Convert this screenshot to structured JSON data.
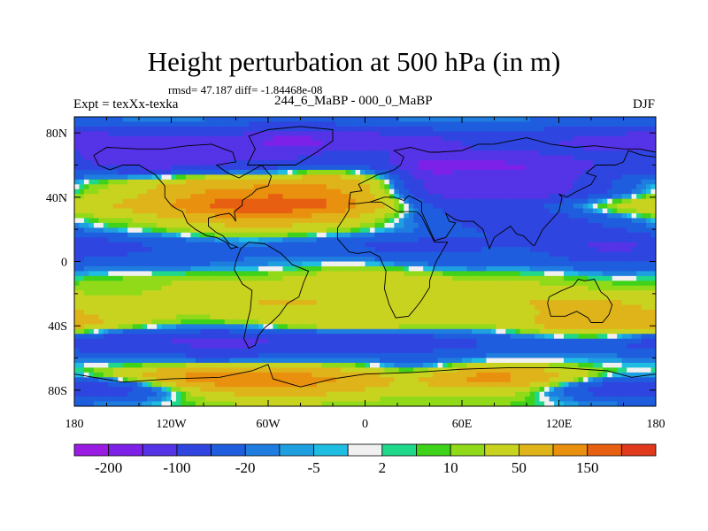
{
  "chart_data": {
    "type": "heatmap",
    "title": "Height perturbation at 500 hPa (in m)",
    "stats": "rmsd= 47.187 diff= -1.84468e-08",
    "left_label": "Expt = texXx-texka",
    "center_label": "244_6_MaBP - 000_0_MaBP",
    "right_label": "DJF",
    "x_ticks": [
      "180",
      "120W",
      "60W",
      "0",
      "60E",
      "120E",
      "180"
    ],
    "x_tick_values": [
      -180,
      -120,
      -60,
      0,
      60,
      120,
      180
    ],
    "y_ticks": [
      "80N",
      "40N",
      "0",
      "40S",
      "80S"
    ],
    "y_tick_values": [
      80,
      40,
      0,
      -40,
      -80
    ],
    "xlim": [
      -180,
      180
    ],
    "ylim": [
      -90,
      90
    ],
    "colorbar": {
      "levels": [
        -250,
        -200,
        -150,
        -100,
        -50,
        -20,
        -10,
        -5,
        -2,
        2,
        5,
        10,
        20,
        50,
        100,
        150,
        200
      ],
      "labels": [
        "-200",
        "-100",
        "-20",
        "-5",
        "2",
        "10",
        "50",
        "150"
      ],
      "colors": [
        "#9a1ce3",
        "#7d21e8",
        "#5533e6",
        "#2f45e0",
        "#1e5ede",
        "#1f7de0",
        "#1e9fe0",
        "#20bde3",
        "#f0f0f0",
        "#20d88a",
        "#3fd21a",
        "#90da19",
        "#c8d320",
        "#dfb41a",
        "#e9900e",
        "#e75f10",
        "#e0391c"
      ]
    },
    "bands": [
      {
        "lat": 85,
        "amp": -20
      },
      {
        "lat": 75,
        "amp": -90
      },
      {
        "lat": 62,
        "amp": -60
      },
      {
        "lat": 48,
        "amp": 40
      },
      {
        "lat": 35,
        "amp": 80
      },
      {
        "lat": 22,
        "amp": 10
      },
      {
        "lat": 10,
        "amp": -40
      },
      {
        "lat": 0,
        "amp": -20
      },
      {
        "lat": -12,
        "amp": 15
      },
      {
        "lat": -25,
        "amp": 35
      },
      {
        "lat": -38,
        "amp": 40
      },
      {
        "lat": -50,
        "amp": -60
      },
      {
        "lat": -62,
        "amp": -10
      },
      {
        "lat": -72,
        "amp": 90
      },
      {
        "lat": -84,
        "amp": 20
      }
    ],
    "anomalies": [
      {
        "lon": 95,
        "lat": 43,
        "amp": -200,
        "rlon": 45,
        "rlat": 15
      },
      {
        "lon": -75,
        "lat": 35,
        "amp": 70,
        "rlon": 35,
        "rlat": 12
      },
      {
        "lon": -120,
        "lat": 65,
        "amp": -60,
        "rlon": 30,
        "rlat": 10
      },
      {
        "lon": -55,
        "lat": 70,
        "amp": -80,
        "rlon": 25,
        "rlat": 10
      },
      {
        "lon": -20,
        "lat": 45,
        "amp": 60,
        "rlon": 25,
        "rlat": 12
      },
      {
        "lon": 40,
        "lat": 50,
        "amp": -70,
        "rlon": 15,
        "rlat": 10
      },
      {
        "lon": -80,
        "lat": -50,
        "amp": -70,
        "rlon": 40,
        "rlat": 8
      },
      {
        "lon": 150,
        "lat": -40,
        "amp": 50,
        "rlon": 30,
        "rlat": 8
      },
      {
        "lon": -150,
        "lat": -78,
        "amp": -80,
        "rlon": 30,
        "rlat": 6
      },
      {
        "lon": 150,
        "lat": -78,
        "amp": -100,
        "rlon": 35,
        "rlat": 7
      },
      {
        "lon": -40,
        "lat": -75,
        "amp": 50,
        "rlon": 40,
        "rlat": 6
      },
      {
        "lon": 30,
        "lat": -70,
        "amp": -50,
        "rlon": 20,
        "rlat": 6
      },
      {
        "lon": 150,
        "lat": 10,
        "amp": -60,
        "rlon": 25,
        "rlat": 10
      },
      {
        "lon": 0,
        "lat": -10,
        "amp": 30,
        "rlon": 30,
        "rlat": 10
      }
    ],
    "coastlines": [
      [
        [
          -168,
          66
        ],
        [
          -160,
          71
        ],
        [
          -140,
          70
        ],
        [
          -125,
          70
        ],
        [
          -110,
          72
        ],
        [
          -95,
          73
        ],
        [
          -82,
          68
        ],
        [
          -80,
          62
        ],
        [
          -92,
          60
        ],
        [
          -85,
          55
        ],
        [
          -78,
          52
        ],
        [
          -64,
          60
        ],
        [
          -58,
          53
        ],
        [
          -60,
          47
        ],
        [
          -67,
          45
        ],
        [
          -70,
          42
        ],
        [
          -76,
          38
        ],
        [
          -76,
          35
        ],
        [
          -81,
          31
        ],
        [
          -80,
          25
        ],
        [
          -82,
          28
        ],
        [
          -84,
          30
        ],
        [
          -90,
          29
        ],
        [
          -97,
          27
        ],
        [
          -97,
          22
        ],
        [
          -92,
          18
        ],
        [
          -88,
          16
        ],
        [
          -84,
          11
        ],
        [
          -79,
          9
        ],
        [
          -83,
          8
        ],
        [
          -86,
          12
        ],
        [
          -92,
          15
        ],
        [
          -98,
          16
        ],
        [
          -105,
          20
        ],
        [
          -110,
          24
        ],
        [
          -113,
          31
        ],
        [
          -117,
          33
        ],
        [
          -120,
          35
        ],
        [
          -124,
          40
        ],
        [
          -124,
          47
        ],
        [
          -130,
          54
        ],
        [
          -140,
          60
        ],
        [
          -150,
          60
        ],
        [
          -158,
          57
        ],
        [
          -165,
          60
        ],
        [
          -168,
          66
        ]
      ],
      [
        [
          -77,
          8
        ],
        [
          -72,
          12
        ],
        [
          -62,
          11
        ],
        [
          -52,
          5
        ],
        [
          -45,
          -2
        ],
        [
          -35,
          -6
        ],
        [
          -38,
          -13
        ],
        [
          -41,
          -22
        ],
        [
          -48,
          -26
        ],
        [
          -53,
          -33
        ],
        [
          -58,
          -38
        ],
        [
          -62,
          -41
        ],
        [
          -66,
          -46
        ],
        [
          -68,
          -52
        ],
        [
          -72,
          -54
        ],
        [
          -75,
          -48
        ],
        [
          -73,
          -38
        ],
        [
          -71,
          -30
        ],
        [
          -70,
          -18
        ],
        [
          -76,
          -14
        ],
        [
          -81,
          -5
        ],
        [
          -80,
          0
        ],
        [
          -77,
          8
        ]
      ],
      [
        [
          -73,
          60
        ],
        [
          -55,
          60
        ],
        [
          -43,
          60
        ],
        [
          -30,
          68
        ],
        [
          -20,
          75
        ],
        [
          -20,
          82
        ],
        [
          -40,
          84
        ],
        [
          -60,
          82
        ],
        [
          -72,
          78
        ],
        [
          -68,
          70
        ],
        [
          -73,
          60
        ]
      ],
      [
        [
          -10,
          36
        ],
        [
          -5,
          36
        ],
        [
          3,
          37
        ],
        [
          10,
          37
        ],
        [
          20,
          31
        ],
        [
          32,
          31
        ],
        [
          35,
          28
        ],
        [
          43,
          12
        ],
        [
          51,
          12
        ],
        [
          44,
          0
        ],
        [
          40,
          -12
        ],
        [
          40,
          -16
        ],
        [
          35,
          -24
        ],
        [
          32,
          -28
        ],
        [
          27,
          -34
        ],
        [
          19,
          -35
        ],
        [
          15,
          -27
        ],
        [
          12,
          -17
        ],
        [
          13,
          -6
        ],
        [
          9,
          3
        ],
        [
          3,
          6
        ],
        [
          -5,
          5
        ],
        [
          -10,
          6
        ],
        [
          -17,
          14
        ],
        [
          -17,
          21
        ],
        [
          -13,
          27
        ],
        [
          -10,
          32
        ],
        [
          -10,
          36
        ]
      ],
      [
        [
          -10,
          36
        ],
        [
          -9,
          43
        ],
        [
          -2,
          44
        ],
        [
          -4,
          48
        ],
        [
          2,
          51
        ],
        [
          8,
          54
        ],
        [
          12,
          55
        ],
        [
          18,
          57
        ],
        [
          22,
          60
        ],
        [
          24,
          65
        ],
        [
          18,
          69
        ],
        [
          28,
          71
        ],
        [
          40,
          68
        ],
        [
          45,
          68
        ],
        [
          60,
          69
        ],
        [
          70,
          73
        ],
        [
          80,
          73
        ],
        [
          100,
          77
        ],
        [
          115,
          73
        ],
        [
          130,
          71
        ],
        [
          142,
          72
        ],
        [
          160,
          70
        ],
        [
          170,
          70
        ],
        [
          180,
          68
        ]
      ],
      [
        [
          3,
          37
        ],
        [
          12,
          40
        ],
        [
          18,
          40
        ],
        [
          24,
          38
        ],
        [
          27,
          41
        ],
        [
          35,
          37
        ],
        [
          35,
          31
        ],
        [
          43,
          13
        ],
        [
          50,
          15
        ],
        [
          56,
          24
        ],
        [
          52,
          25
        ],
        [
          50,
          30
        ],
        [
          56,
          26
        ],
        [
          60,
          25
        ],
        [
          67,
          25
        ],
        [
          73,
          20
        ],
        [
          77,
          8
        ],
        [
          80,
          15
        ],
        [
          90,
          22
        ],
        [
          94,
          17
        ],
        [
          98,
          16
        ],
        [
          104,
          10
        ],
        [
          105,
          10
        ],
        [
          110,
          20
        ],
        [
          120,
          31
        ],
        [
          122,
          40
        ],
        [
          120,
          42
        ],
        [
          125,
          40
        ],
        [
          130,
          43
        ],
        [
          140,
          48
        ],
        [
          143,
          53
        ],
        [
          137,
          55
        ],
        [
          143,
          60
        ],
        [
          155,
          60
        ],
        [
          160,
          62
        ],
        [
          163,
          69
        ],
        [
          172,
          66
        ],
        [
          180,
          65
        ]
      ],
      [
        [
          114,
          -22
        ],
        [
          113,
          -26
        ],
        [
          115,
          -34
        ],
        [
          124,
          -34
        ],
        [
          131,
          -31
        ],
        [
          138,
          -35
        ],
        [
          140,
          -38
        ],
        [
          147,
          -38
        ],
        [
          151,
          -33
        ],
        [
          153,
          -27
        ],
        [
          150,
          -22
        ],
        [
          146,
          -19
        ],
        [
          142,
          -11
        ],
        [
          136,
          -12
        ],
        [
          132,
          -11
        ],
        [
          129,
          -15
        ],
        [
          122,
          -18
        ],
        [
          114,
          -22
        ]
      ],
      [
        [
          -180,
          -70
        ],
        [
          -150,
          -75
        ],
        [
          -120,
          -73
        ],
        [
          -90,
          -72
        ],
        [
          -70,
          -68
        ],
        [
          -60,
          -64
        ],
        [
          -57,
          -73
        ],
        [
          -40,
          -78
        ],
        [
          -20,
          -73
        ],
        [
          0,
          -70
        ],
        [
          30,
          -69
        ],
        [
          60,
          -67
        ],
        [
          90,
          -66
        ],
        [
          120,
          -66
        ],
        [
          150,
          -68
        ],
        [
          165,
          -72
        ],
        [
          180,
          -70
        ]
      ]
    ]
  }
}
